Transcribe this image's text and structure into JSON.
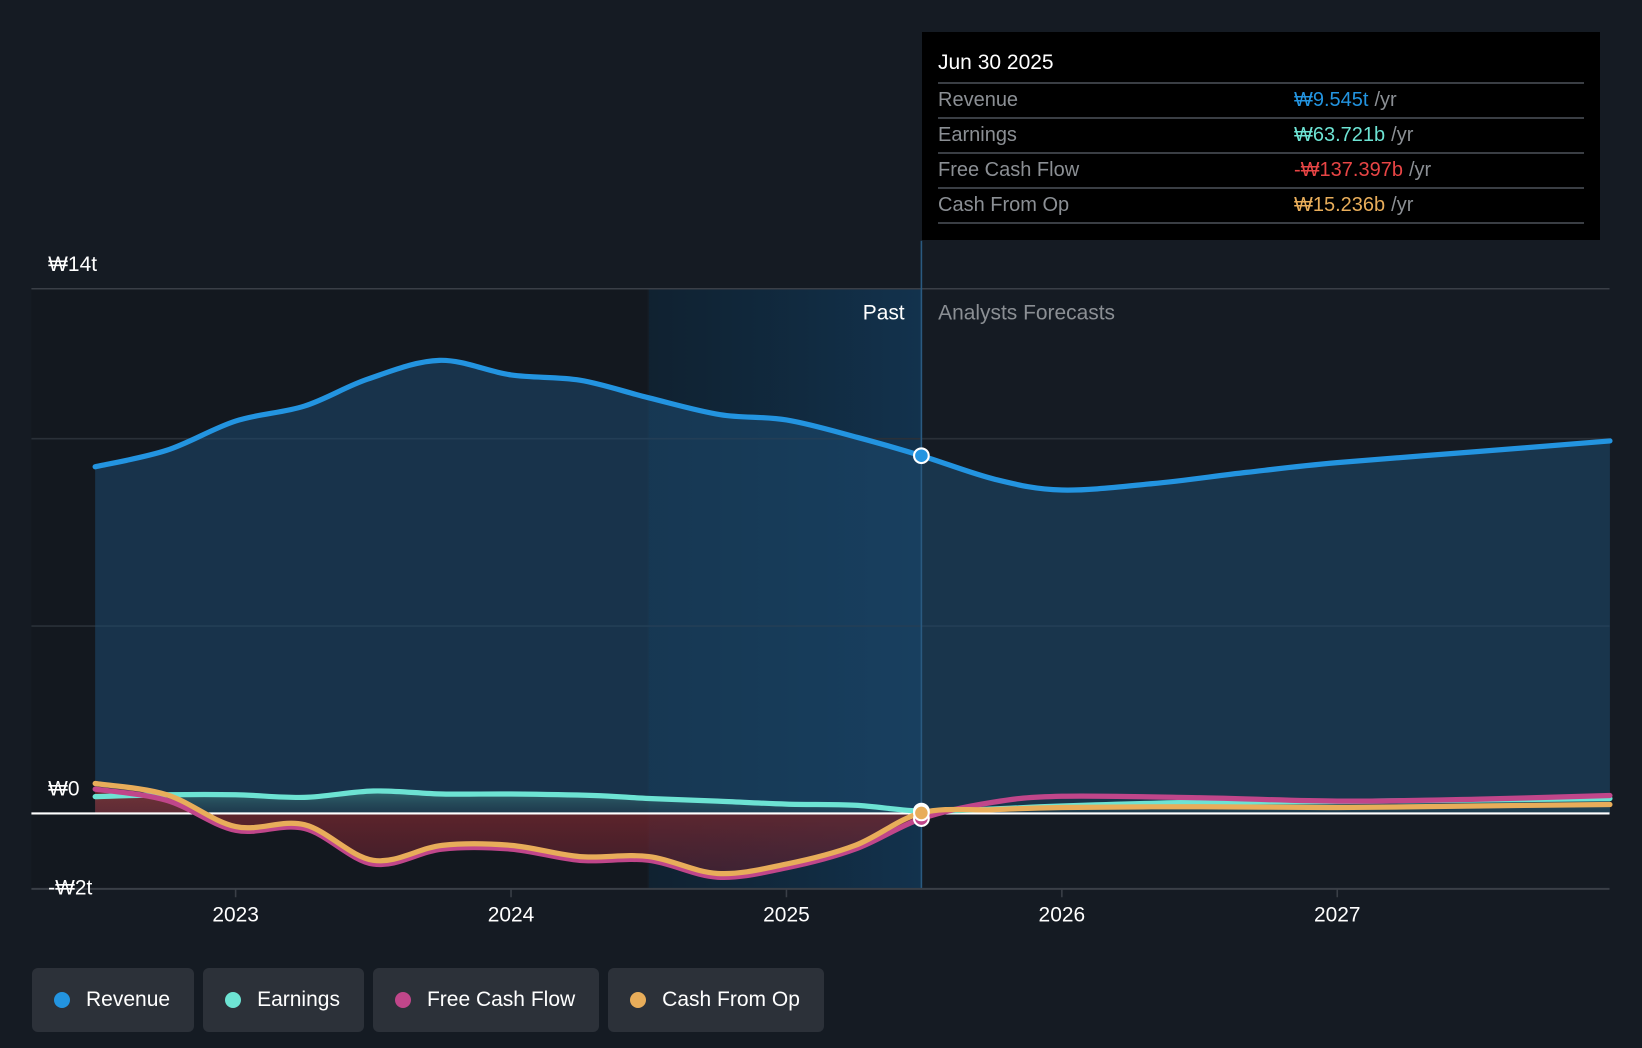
{
  "chart_data": {
    "type": "area",
    "title": "",
    "currency_symbol": "₩",
    "xlabel": "",
    "ylabel": "",
    "x_ticks": [
      "2023",
      "2024",
      "2025",
      "2026",
      "2027"
    ],
    "x_tick_values": [
      2023,
      2024,
      2025,
      2026,
      2027
    ],
    "xlim": [
      2022.25,
      2027.99
    ],
    "y_tick_labels": [
      "₩14t",
      "₩0",
      "-₩2t"
    ],
    "y_tick_values": [
      14,
      0,
      -2
    ],
    "y_gridlines": [
      14,
      10,
      5,
      0
    ],
    "ylim": [
      -2,
      14
    ],
    "y_unit": "trillion KRW",
    "grid": true,
    "past_label": "Past",
    "forecast_label": "Analysts Forecasts",
    "divider_date": 2025.49,
    "highlight_band_start": 2024.5,
    "series": [
      {
        "name": "Revenue",
        "color": "#2394e0",
        "x": [
          2022.49,
          2022.75,
          2023.0,
          2023.25,
          2023.48,
          2023.74,
          2024.0,
          2024.25,
          2024.5,
          2024.76,
          2025.0,
          2025.26,
          2025.49,
          2025.76,
          2026.0,
          2026.33,
          2026.67,
          2027.0,
          2027.5,
          2027.99
        ],
        "values": [
          9.25,
          9.69,
          10.47,
          10.87,
          11.59,
          12.09,
          11.7,
          11.56,
          11.09,
          10.64,
          10.5,
          10.03,
          9.545,
          8.91,
          8.63,
          8.8,
          9.1,
          9.36,
          9.65,
          9.94
        ]
      },
      {
        "name": "Earnings",
        "color": "#6de3d3",
        "x": [
          2022.49,
          2022.75,
          2023.0,
          2023.25,
          2023.5,
          2023.75,
          2024.0,
          2024.3,
          2024.5,
          2024.75,
          2025.0,
          2025.25,
          2025.49,
          2025.75,
          2026.0,
          2026.5,
          2027.0,
          2027.5,
          2027.99
        ],
        "values": [
          0.45,
          0.5,
          0.5,
          0.43,
          0.6,
          0.52,
          0.52,
          0.48,
          0.4,
          0.33,
          0.25,
          0.22,
          0.064,
          0.12,
          0.2,
          0.3,
          0.32,
          0.36,
          0.4
        ]
      },
      {
        "name": "Free Cash Flow",
        "color": "#c0468a",
        "x": [
          2022.49,
          2022.75,
          2023.0,
          2023.25,
          2023.5,
          2023.75,
          2024.0,
          2024.25,
          2024.5,
          2024.75,
          2025.0,
          2025.25,
          2025.49,
          2025.75,
          2026.0,
          2026.5,
          2027.0,
          2027.5,
          2027.99
        ],
        "values": [
          0.65,
          0.35,
          -0.45,
          -0.4,
          -1.35,
          -0.95,
          -0.95,
          -1.25,
          -1.25,
          -1.7,
          -1.45,
          -0.95,
          -0.137,
          0.3,
          0.46,
          0.42,
          0.33,
          0.38,
          0.48
        ]
      },
      {
        "name": "Cash From Op",
        "color": "#e8ad5a",
        "x": [
          2022.49,
          2022.75,
          2023.0,
          2023.25,
          2023.5,
          2023.75,
          2024.0,
          2024.25,
          2024.5,
          2024.75,
          2025.0,
          2025.25,
          2025.49,
          2025.75,
          2026.0,
          2026.5,
          2027.0,
          2027.5,
          2027.99
        ],
        "values": [
          0.8,
          0.5,
          -0.35,
          -0.3,
          -1.25,
          -0.85,
          -0.85,
          -1.15,
          -1.15,
          -1.6,
          -1.35,
          -0.85,
          0.015,
          0.1,
          0.16,
          0.18,
          0.16,
          0.2,
          0.24
        ]
      }
    ]
  },
  "tooltip": {
    "date": "Jun 30 2025",
    "rows": [
      {
        "name": "Revenue",
        "value": "₩9.545t",
        "unit": "/yr",
        "color": "#2394e0"
      },
      {
        "name": "Earnings",
        "value": "₩63.721b",
        "unit": "/yr",
        "color": "#6de3d3"
      },
      {
        "name": "Free Cash Flow",
        "value": "-₩137.397b",
        "unit": "/yr",
        "color": "#e84545"
      },
      {
        "name": "Cash From Op",
        "value": "₩15.236b",
        "unit": "/yr",
        "color": "#e8ad5a"
      }
    ]
  },
  "legend": [
    {
      "label": "Revenue",
      "color": "#2394e0"
    },
    {
      "label": "Earnings",
      "color": "#6de3d3"
    },
    {
      "label": "Free Cash Flow",
      "color": "#c0468a"
    },
    {
      "label": "Cash From Op",
      "color": "#e8ad5a"
    }
  ]
}
